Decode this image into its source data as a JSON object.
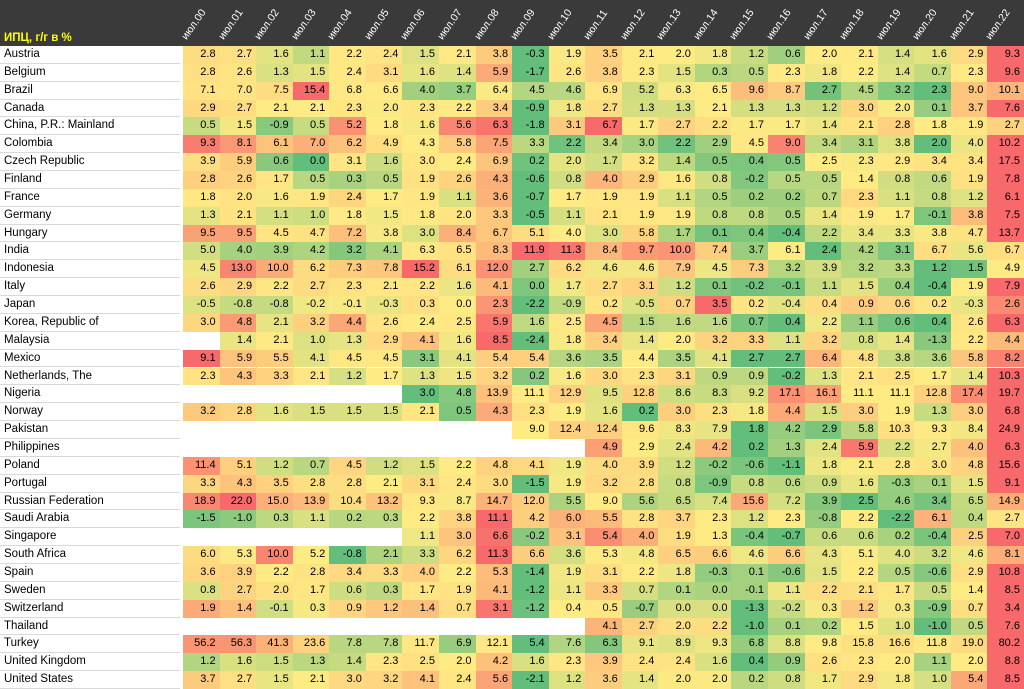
{
  "corner_title": "ИПЦ, г/г в %",
  "chart_data": {
    "type": "heatmap",
    "title": "ИПЦ, г/г в %",
    "columns": [
      "июл.00",
      "июл.01",
      "июл.02",
      "июл.03",
      "июл.04",
      "июл.05",
      "июл.06",
      "июл.07",
      "июл.08",
      "июл.09",
      "июл.10",
      "июл.11",
      "июл.12",
      "июл.13",
      "июл.14",
      "июл.15",
      "июл.16",
      "июл.17",
      "июл.18",
      "июл.19",
      "июл.20",
      "июл.21",
      "июл.22"
    ],
    "rows": [
      {
        "name": "Austria",
        "values": [
          2.8,
          2.7,
          1.6,
          1.1,
          2.2,
          2.4,
          1.5,
          2.1,
          3.8,
          -0.3,
          1.9,
          3.5,
          2.1,
          2.0,
          1.8,
          1.2,
          0.6,
          2.0,
          2.1,
          1.4,
          1.6,
          2.9,
          9.3
        ]
      },
      {
        "name": "Belgium",
        "values": [
          2.8,
          2.6,
          1.3,
          1.5,
          2.4,
          3.1,
          1.6,
          1.4,
          5.9,
          -1.7,
          2.6,
          3.8,
          2.3,
          1.5,
          0.3,
          0.5,
          2.3,
          1.8,
          2.2,
          1.4,
          0.7,
          2.3,
          9.6
        ]
      },
      {
        "name": "Brazil",
        "values": [
          7.1,
          7.0,
          7.5,
          15.4,
          6.8,
          6.6,
          4.0,
          3.7,
          6.4,
          4.5,
          4.6,
          6.9,
          5.2,
          6.3,
          6.5,
          9.6,
          8.7,
          2.7,
          4.5,
          3.2,
          2.3,
          9.0,
          10.1
        ]
      },
      {
        "name": "Canada",
        "values": [
          2.9,
          2.7,
          2.1,
          2.1,
          2.3,
          2.0,
          2.3,
          2.2,
          3.4,
          -0.9,
          1.8,
          2.7,
          1.3,
          1.3,
          2.1,
          1.3,
          1.3,
          1.2,
          3.0,
          2.0,
          0.1,
          3.7,
          7.6
        ]
      },
      {
        "name": "China, P.R.: Mainland",
        "values": [
          0.5,
          1.5,
          -0.9,
          0.5,
          5.2,
          1.8,
          1.6,
          5.6,
          6.3,
          -1.8,
          3.1,
          6.7,
          1.7,
          2.7,
          2.2,
          1.7,
          1.7,
          1.4,
          2.1,
          2.8,
          1.8,
          1.9,
          2.7
        ]
      },
      {
        "name": "Colombia",
        "values": [
          9.3,
          8.1,
          6.1,
          7.0,
          6.2,
          4.9,
          4.3,
          5.8,
          7.5,
          3.3,
          2.2,
          3.4,
          3.0,
          2.2,
          2.9,
          4.5,
          9.0,
          3.4,
          3.1,
          3.8,
          2.0,
          4.0,
          10.2
        ]
      },
      {
        "name": "Czech Republic",
        "values": [
          3.9,
          5.9,
          0.6,
          0.0,
          3.1,
          1.6,
          3.0,
          2.4,
          6.9,
          0.2,
          2.0,
          1.7,
          3.2,
          1.4,
          0.5,
          0.4,
          0.5,
          2.5,
          2.3,
          2.9,
          3.4,
          3.4,
          17.5
        ]
      },
      {
        "name": "Finland",
        "values": [
          2.8,
          2.6,
          1.7,
          0.5,
          0.3,
          0.5,
          1.9,
          2.6,
          4.3,
          -0.6,
          0.8,
          4.0,
          2.9,
          1.6,
          0.8,
          -0.2,
          0.5,
          0.5,
          1.4,
          0.8,
          0.6,
          1.9,
          7.8
        ]
      },
      {
        "name": "France",
        "values": [
          1.8,
          2.0,
          1.6,
          1.9,
          2.4,
          1.7,
          1.9,
          1.1,
          3.6,
          -0.7,
          1.7,
          1.9,
          1.9,
          1.1,
          0.5,
          0.2,
          0.2,
          0.7,
          2.3,
          1.1,
          0.8,
          1.2,
          6.1
        ]
      },
      {
        "name": "Germany",
        "values": [
          1.3,
          2.1,
          1.1,
          1.0,
          1.8,
          1.5,
          1.8,
          2.0,
          3.3,
          -0.5,
          1.1,
          2.1,
          1.9,
          1.9,
          0.8,
          0.8,
          0.5,
          1.4,
          1.9,
          1.7,
          -0.1,
          3.8,
          7.5
        ]
      },
      {
        "name": "Hungary",
        "values": [
          9.5,
          9.5,
          4.5,
          4.7,
          7.2,
          3.8,
          3.0,
          8.4,
          6.7,
          5.1,
          4.0,
          3.0,
          5.8,
          1.7,
          0.1,
          0.4,
          -0.4,
          2.2,
          3.4,
          3.3,
          3.8,
          4.7,
          13.7
        ]
      },
      {
        "name": "India",
        "values": [
          5.0,
          4.0,
          3.9,
          4.2,
          3.2,
          4.1,
          6.3,
          6.5,
          8.3,
          11.9,
          11.3,
          8.4,
          9.7,
          10.0,
          7.4,
          3.7,
          6.1,
          2.4,
          4.2,
          3.1,
          6.7,
          5.6,
          6.7
        ]
      },
      {
        "name": "Indonesia",
        "values": [
          4.5,
          13.0,
          10.0,
          6.2,
          7.3,
          7.8,
          15.2,
          6.1,
          12.0,
          2.7,
          6.2,
          4.6,
          4.6,
          7.9,
          4.5,
          7.3,
          3.2,
          3.9,
          3.2,
          3.3,
          1.2,
          1.5,
          4.9
        ]
      },
      {
        "name": "Italy",
        "values": [
          2.6,
          2.9,
          2.2,
          2.7,
          2.3,
          2.1,
          2.2,
          1.6,
          4.1,
          0.0,
          1.7,
          2.7,
          3.1,
          1.2,
          0.1,
          -0.2,
          -0.1,
          1.1,
          1.5,
          0.4,
          -0.4,
          1.9,
          7.9
        ]
      },
      {
        "name": "Japan",
        "values": [
          -0.5,
          -0.8,
          -0.8,
          -0.2,
          -0.1,
          -0.3,
          0.3,
          0.0,
          2.3,
          -2.2,
          -0.9,
          0.2,
          -0.5,
          0.7,
          3.5,
          0.2,
          -0.4,
          0.4,
          0.9,
          0.6,
          0.2,
          -0.3,
          2.6
        ]
      },
      {
        "name": "Korea, Republic of",
        "values": [
          3.0,
          4.8,
          2.1,
          3.2,
          4.4,
          2.6,
          2.4,
          2.5,
          5.9,
          1.6,
          2.5,
          4.5,
          1.5,
          1.6,
          1.6,
          0.7,
          0.4,
          2.2,
          1.1,
          0.6,
          0.4,
          2.6,
          6.3
        ]
      },
      {
        "name": "Malaysia",
        "values": [
          null,
          1.4,
          2.1,
          1.0,
          1.3,
          2.9,
          4.1,
          1.6,
          8.5,
          -2.4,
          1.8,
          3.4,
          1.4,
          2.0,
          3.2,
          3.3,
          1.1,
          3.2,
          0.8,
          1.4,
          -1.3,
          2.2,
          4.4
        ]
      },
      {
        "name": "Mexico",
        "values": [
          9.1,
          5.9,
          5.5,
          4.1,
          4.5,
          4.5,
          3.1,
          4.1,
          5.4,
          5.4,
          3.6,
          3.5,
          4.4,
          3.5,
          4.1,
          2.7,
          2.7,
          6.4,
          4.8,
          3.8,
          3.6,
          5.8,
          8.2
        ]
      },
      {
        "name": "Netherlands, The",
        "values": [
          2.3,
          4.3,
          3.3,
          2.1,
          1.2,
          1.7,
          1.3,
          1.5,
          3.2,
          0.2,
          1.6,
          3.0,
          2.3,
          3.1,
          0.9,
          0.9,
          -0.2,
          1.3,
          2.1,
          2.5,
          1.7,
          1.4,
          10.3
        ]
      },
      {
        "name": "Nigeria",
        "values": [
          null,
          null,
          null,
          null,
          null,
          null,
          3.0,
          4.8,
          13.9,
          11.1,
          12.9,
          9.5,
          12.8,
          8.6,
          8.3,
          9.2,
          17.1,
          16.1,
          11.1,
          11.1,
          12.8,
          17.4,
          19.7
        ]
      },
      {
        "name": "Norway",
        "values": [
          3.2,
          2.8,
          1.6,
          1.5,
          1.5,
          1.5,
          2.1,
          0.5,
          4.3,
          2.3,
          1.9,
          1.6,
          0.2,
          3.0,
          2.3,
          1.8,
          4.4,
          1.5,
          3.0,
          1.9,
          1.3,
          3.0,
          6.8
        ]
      },
      {
        "name": "Pakistan",
        "values": [
          null,
          null,
          null,
          null,
          null,
          null,
          null,
          null,
          null,
          9.0,
          12.4,
          12.4,
          9.6,
          8.3,
          7.9,
          1.8,
          4.2,
          2.9,
          5.8,
          10.3,
          9.3,
          8.4,
          24.9
        ]
      },
      {
        "name": "Philippines",
        "values": [
          null,
          null,
          null,
          null,
          null,
          null,
          null,
          null,
          null,
          null,
          null,
          4.9,
          2.9,
          2.4,
          4.2,
          0.2,
          1.3,
          2.4,
          5.9,
          2.2,
          2.7,
          4.0,
          6.3
        ]
      },
      {
        "name": "Poland",
        "values": [
          11.4,
          5.1,
          1.2,
          0.7,
          4.5,
          1.2,
          1.5,
          2.2,
          4.8,
          4.1,
          1.9,
          4.0,
          3.9,
          1.2,
          -0.2,
          -0.6,
          -1.1,
          1.8,
          2.1,
          2.8,
          3.0,
          4.8,
          15.6
        ]
      },
      {
        "name": "Portugal",
        "values": [
          3.3,
          4.3,
          3.5,
          2.8,
          2.8,
          2.1,
          3.1,
          2.4,
          3.0,
          -1.5,
          1.9,
          3.2,
          2.8,
          0.8,
          -0.9,
          0.8,
          0.6,
          0.9,
          1.6,
          -0.3,
          0.1,
          1.5,
          9.1
        ]
      },
      {
        "name": "Russian Federation",
        "values": [
          18.9,
          22.0,
          15.0,
          13.9,
          10.4,
          13.2,
          9.3,
          8.7,
          14.7,
          12.0,
          5.5,
          9.0,
          5.6,
          6.5,
          7.4,
          15.6,
          7.2,
          3.9,
          2.5,
          4.6,
          3.4,
          6.5,
          14.9
        ]
      },
      {
        "name": "Saudi Arabia",
        "values": [
          -1.5,
          -1.0,
          0.3,
          1.1,
          0.2,
          0.3,
          2.2,
          3.8,
          11.1,
          4.2,
          6.0,
          5.5,
          2.8,
          3.7,
          2.3,
          1.2,
          2.3,
          -0.8,
          2.2,
          -2.2,
          6.1,
          0.4,
          2.7
        ]
      },
      {
        "name": "Singapore",
        "values": [
          null,
          null,
          null,
          null,
          null,
          null,
          1.1,
          3.0,
          6.6,
          -0.2,
          3.1,
          5.4,
          4.0,
          1.9,
          1.3,
          -0.4,
          -0.7,
          0.6,
          0.6,
          0.2,
          -0.4,
          2.5,
          7.0
        ]
      },
      {
        "name": "South Africa",
        "values": [
          6.0,
          5.3,
          10.0,
          5.2,
          -0.8,
          2.1,
          3.3,
          6.2,
          11.3,
          6.6,
          3.6,
          5.3,
          4.8,
          6.5,
          6.6,
          4.6,
          6.6,
          4.3,
          5.1,
          4.0,
          3.2,
          4.6,
          8.1
        ]
      },
      {
        "name": "Spain",
        "values": [
          3.6,
          3.9,
          2.2,
          2.8,
          3.4,
          3.3,
          4.0,
          2.2,
          5.3,
          -1.4,
          1.9,
          3.1,
          2.2,
          1.8,
          -0.3,
          0.1,
          -0.6,
          1.5,
          2.2,
          0.5,
          -0.6,
          2.9,
          10.8
        ]
      },
      {
        "name": "Sweden",
        "values": [
          0.8,
          2.7,
          2.0,
          1.7,
          0.6,
          0.3,
          1.7,
          1.9,
          4.1,
          -1.2,
          1.1,
          3.3,
          0.7,
          0.1,
          0.0,
          -0.1,
          1.1,
          2.2,
          2.1,
          1.7,
          0.5,
          1.4,
          8.5
        ]
      },
      {
        "name": "Switzerland",
        "values": [
          1.9,
          1.4,
          -0.1,
          0.3,
          0.9,
          1.2,
          1.4,
          0.7,
          3.1,
          -1.2,
          0.4,
          0.5,
          -0.7,
          0.0,
          0.0,
          -1.3,
          -0.2,
          0.3,
          1.2,
          0.3,
          -0.9,
          0.7,
          3.4
        ]
      },
      {
        "name": "Thailand",
        "values": [
          null,
          null,
          null,
          null,
          null,
          null,
          null,
          null,
          null,
          null,
          null,
          4.1,
          2.7,
          2.0,
          2.2,
          -1.0,
          0.1,
          0.2,
          1.5,
          1.0,
          -1.0,
          0.5,
          7.6
        ]
      },
      {
        "name": "Turkey",
        "values": [
          56.2,
          56.3,
          41.3,
          23.6,
          7.8,
          7.8,
          11.7,
          6.9,
          12.1,
          5.4,
          7.6,
          6.3,
          9.1,
          8.9,
          9.3,
          6.8,
          8.8,
          9.8,
          15.8,
          16.6,
          11.8,
          19.0,
          80.2
        ]
      },
      {
        "name": "United Kingdom",
        "values": [
          1.2,
          1.6,
          1.5,
          1.3,
          1.4,
          2.3,
          2.5,
          2.0,
          4.2,
          1.6,
          2.3,
          3.9,
          2.4,
          2.4,
          1.6,
          0.4,
          0.9,
          2.6,
          2.3,
          2.0,
          1.1,
          2.0,
          8.8
        ]
      },
      {
        "name": "United States",
        "values": [
          3.7,
          2.7,
          1.5,
          2.1,
          3.0,
          3.2,
          4.1,
          2.4,
          5.6,
          -2.1,
          1.2,
          3.6,
          1.4,
          2.0,
          2.0,
          0.2,
          0.8,
          1.7,
          2.9,
          1.8,
          1.0,
          5.4,
          8.5
        ]
      }
    ],
    "color_scale": {
      "low": "#63be7b",
      "mid": "#ffeb84",
      "high": "#f8696b"
    }
  }
}
